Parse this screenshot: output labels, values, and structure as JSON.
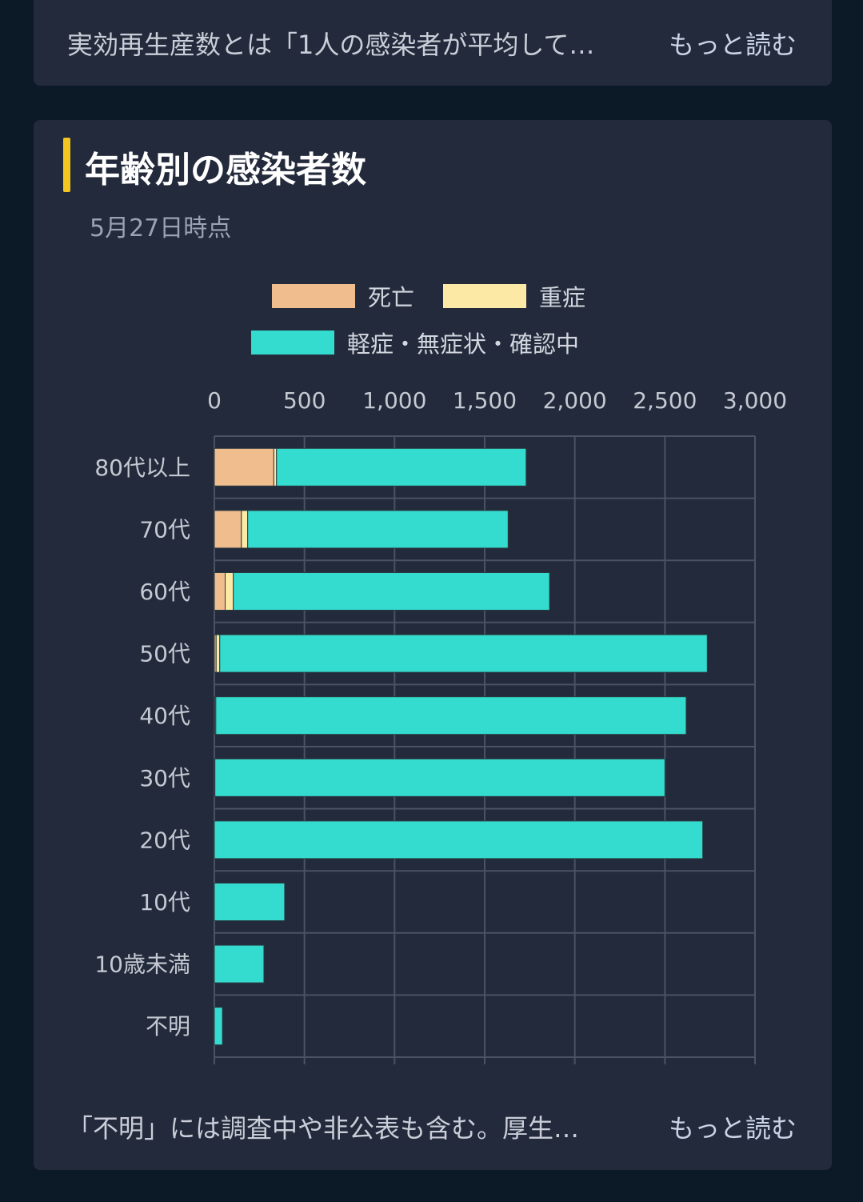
{
  "top_card": {
    "text": "実効再生産数とは「1人の感染者が平均して…",
    "more": "もっと読む"
  },
  "main_card": {
    "footer_text": "「不明」には調査中や非公表も含む。厚生…",
    "more": "もっと読む"
  },
  "chart_data": {
    "type": "bar",
    "orientation": "horizontal",
    "stacked": true,
    "title": "年齢別の感染者数",
    "subtitle": "5月27日時点",
    "categories": [
      "80代以上",
      "70代",
      "60代",
      "50代",
      "40代",
      "30代",
      "20代",
      "10代",
      "10歳未満",
      "不明"
    ],
    "series": [
      {
        "name": "死亡",
        "color": "#f0bd8e",
        "values": [
          330,
          150,
          60,
          10,
          3,
          0,
          0,
          0,
          0,
          0
        ]
      },
      {
        "name": "重症",
        "color": "#fde9a6",
        "values": [
          15,
          35,
          45,
          20,
          5,
          3,
          0,
          0,
          0,
          0
        ]
      },
      {
        "name": "軽症・無症状・確認中",
        "color": "#34dccf",
        "values": [
          1385,
          1445,
          1755,
          2705,
          2610,
          2497,
          2710,
          390,
          275,
          45
        ]
      }
    ],
    "xticks": [
      "0",
      "500",
      "1,000",
      "1,500",
      "2,000",
      "2,500",
      "3,000"
    ],
    "xlim": [
      0,
      3000
    ],
    "axis_position": "top",
    "grid": true,
    "legend_position": "top"
  }
}
